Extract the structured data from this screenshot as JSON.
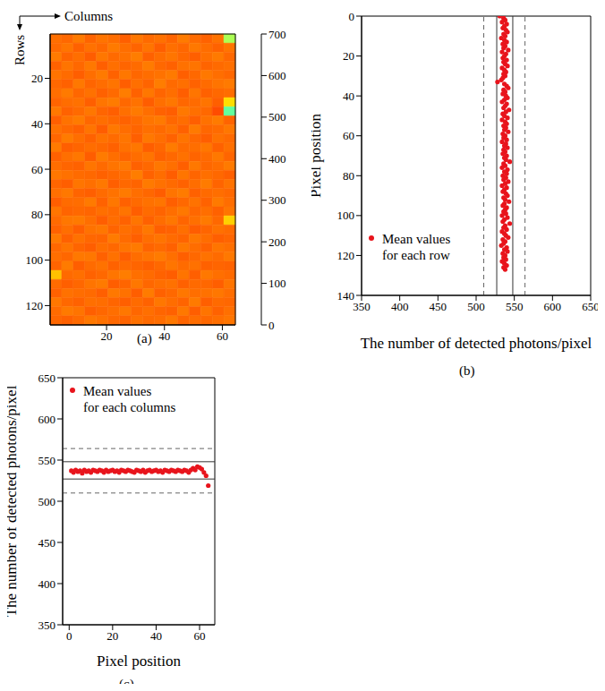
{
  "chart_data": [
    {
      "type": "heatmap",
      "caption": "(a)",
      "x_label": "Columns",
      "y_label": "Rows",
      "color": "jet",
      "xlim": [
        0.5,
        64.5
      ],
      "xticks": [
        20,
        40,
        60
      ],
      "ylim": [
        128.5,
        0.5
      ],
      "yticks": [
        20,
        40,
        60,
        80,
        100,
        120
      ],
      "colorbar": {
        "range": [
          0,
          700
        ],
        "ticks": [
          0,
          100,
          200,
          300,
          400,
          500,
          600,
          700
        ]
      },
      "cells": [
        [
          536,
          541,
          529,
          544,
          533,
          538,
          547,
          531,
          540,
          535,
          543,
          528,
          539,
          545,
          534,
          380
        ],
        [
          540,
          532,
          546,
          535,
          541,
          529,
          537,
          544,
          533,
          548,
          536,
          542,
          530,
          538,
          545,
          533
        ],
        [
          528,
          544,
          537,
          549,
          531,
          540,
          535,
          527,
          546,
          538,
          532,
          541,
          547,
          536,
          529,
          541
        ],
        [
          545,
          533,
          541,
          530,
          547,
          536,
          543,
          539,
          528,
          541,
          546,
          535,
          533,
          544,
          540,
          536
        ],
        [
          533,
          539,
          548,
          537,
          529,
          545,
          531,
          542,
          538,
          534,
          529,
          547,
          541,
          530,
          537,
          542
        ],
        [
          541,
          546,
          530,
          543,
          538,
          533,
          548,
          536,
          544,
          527,
          540,
          536,
          545,
          539,
          533,
          529
        ],
        [
          537,
          529,
          542,
          535,
          546,
          540,
          527,
          545,
          531,
          543,
          537,
          548,
          532,
          546,
          541,
          538
        ],
        [
          544,
          538,
          535,
          547,
          532,
          528,
          541,
          534,
          549,
          536,
          531,
          542,
          539,
          533,
          547,
          460
        ],
        [
          530,
          545,
          540,
          531,
          543,
          547,
          536,
          529,
          537,
          545,
          548,
          530,
          536,
          541,
          560,
          330
        ],
        [
          547,
          534,
          528,
          542,
          537,
          541,
          545,
          540,
          532,
          529,
          542,
          538,
          547,
          535,
          528,
          544
        ],
        [
          535,
          541,
          546,
          533,
          549,
          530,
          538,
          543,
          536,
          540,
          534,
          546,
          529,
          542,
          539,
          531
        ],
        [
          542,
          528,
          537,
          545,
          534,
          539,
          532,
          547,
          530,
          537,
          545,
          533,
          541,
          548,
          535,
          540
        ],
        [
          529,
          547,
          543,
          538,
          541,
          546,
          535,
          531,
          548,
          542,
          528,
          539,
          537,
          531,
          546,
          536
        ],
        [
          546,
          536,
          531,
          549,
          528,
          537,
          544,
          538,
          533,
          546,
          541,
          535,
          544,
          539,
          530,
          543
        ],
        [
          538,
          543,
          545,
          532,
          540,
          533,
          529,
          546,
          541,
          531,
          536,
          547,
          530,
          542,
          538,
          529
        ],
        [
          531,
          535,
          539,
          541,
          546,
          542,
          538,
          527,
          545,
          538,
          549,
          532,
          543,
          536,
          541,
          547
        ],
        [
          543,
          548,
          532,
          536,
          530,
          547,
          541,
          544,
          529,
          535,
          540,
          545,
          538,
          528,
          544,
          534
        ],
        [
          536,
          530,
          544,
          547,
          539,
          534,
          529,
          537,
          542,
          549,
          533,
          528,
          546,
          540,
          537,
          541
        ],
        [
          548,
          539,
          538,
          529,
          545,
          531,
          546,
          540,
          535,
          532,
          547,
          541,
          534,
          545,
          529,
          538
        ],
        [
          532,
          544,
          541,
          543,
          536,
          540,
          533,
          548,
          539,
          544,
          537,
          530,
          542,
          537,
          546,
          532
        ],
        [
          540,
          531,
          529,
          537,
          548,
          538,
          545,
          532,
          546,
          538,
          531,
          543,
          536,
          529,
          541,
          470
        ],
        [
          545,
          537,
          547,
          534,
          531,
          544,
          536,
          541,
          530,
          547,
          545,
          536,
          549,
          543,
          535,
          539
        ],
        [
          529,
          546,
          535,
          542,
          543,
          528,
          539,
          547,
          537,
          533,
          539,
          544,
          531,
          538,
          547,
          543
        ],
        [
          541,
          533,
          543,
          548,
          537,
          541,
          532,
          529,
          544,
          540,
          546,
          530,
          538,
          545,
          532,
          536
        ],
        [
          537,
          542,
          530,
          531,
          546,
          535,
          548,
          538,
          533,
          528,
          536,
          547,
          541,
          534,
          539,
          530
        ],
        [
          544,
          528,
          548,
          539,
          534,
          545,
          540,
          543,
          547,
          541,
          532,
          539,
          535,
          546,
          543,
          545
        ],
        [
          480,
          540,
          536,
          545,
          541,
          532,
          527,
          536,
          539,
          545,
          549,
          533,
          547,
          530,
          536,
          540
        ],
        [
          539,
          547,
          542,
          533,
          529,
          548,
          543,
          531,
          542,
          537,
          535,
          546,
          540,
          542,
          548,
          533
        ],
        [
          546,
          535,
          538,
          540,
          547,
          530,
          535,
          548,
          528,
          546,
          541,
          531,
          537,
          535,
          531,
          538
        ],
        [
          531,
          541,
          545,
          536,
          538,
          543,
          547,
          539,
          545,
          531,
          538,
          544,
          529,
          547,
          540,
          542
        ],
        [
          539,
          529,
          533,
          547,
          542,
          537,
          531,
          542,
          536,
          543,
          546,
          530,
          548,
          533,
          545,
          536
        ],
        [
          542,
          546,
          540,
          530,
          535,
          541,
          544,
          535,
          540,
          538,
          530,
          543,
          538,
          541,
          537,
          532
        ]
      ]
    },
    {
      "type": "scatter",
      "caption": "(b)",
      "x_label": "The number of detected photons/pixel",
      "y_label": "Pixel position",
      "xlim": [
        350,
        650
      ],
      "xticks": [
        350,
        400,
        450,
        500,
        550,
        600,
        650
      ],
      "ylim": [
        140,
        0
      ],
      "yticks": [
        0,
        20,
        40,
        60,
        80,
        100,
        120,
        140
      ],
      "legend": "lower left",
      "reference_lines": [
        {
          "axis": "x",
          "value": 510,
          "line_style": "dashed"
        },
        {
          "axis": "x",
          "value": 527,
          "line_style": "solid"
        },
        {
          "axis": "x",
          "value": 548,
          "line_style": "solid"
        },
        {
          "axis": "x",
          "value": 564,
          "line_style": "dashed"
        }
      ],
      "series": [
        {
          "name": "Mean values for each row",
          "color": "#e8141c",
          "marker": "circle",
          "x": [
            531,
            536,
            538,
            534,
            540,
            537,
            535,
            539,
            541,
            536,
            538,
            533,
            537,
            540,
            535,
            538,
            536,
            542,
            534,
            539,
            537,
            535,
            540,
            536,
            538,
            541,
            534,
            537,
            539,
            536,
            538,
            535,
            533,
            528,
            537,
            540,
            542,
            536,
            538,
            535,
            539,
            541,
            537,
            534,
            540,
            538,
            536,
            543,
            539,
            535,
            537,
            541,
            534,
            538,
            540,
            536,
            539,
            537,
            542,
            535,
            538,
            536,
            540,
            534,
            539,
            537,
            541,
            536,
            538,
            535,
            540,
            537,
            539,
            544,
            536,
            538,
            534,
            541,
            537,
            540,
            535,
            539,
            536,
            542,
            538,
            534,
            540,
            537,
            535,
            539,
            541,
            536,
            538,
            543,
            537,
            535,
            540,
            538,
            536,
            539,
            534,
            541,
            537,
            535,
            544,
            538,
            536,
            540,
            534,
            537,
            539,
            542,
            535,
            538,
            536,
            533,
            540,
            537,
            541,
            535,
            538,
            536,
            539,
            534,
            537,
            540,
            536,
            538
          ],
          "y": [
            0,
            1,
            2,
            3,
            4,
            5,
            6,
            7,
            8,
            9,
            10,
            11,
            12,
            13,
            14,
            15,
            16,
            17,
            18,
            19,
            20,
            21,
            22,
            23,
            24,
            25,
            26,
            27,
            28,
            29,
            30,
            31,
            32,
            33,
            34,
            35,
            36,
            37,
            38,
            39,
            40,
            41,
            42,
            43,
            44,
            45,
            46,
            47,
            48,
            49,
            50,
            51,
            52,
            53,
            54,
            55,
            56,
            57,
            58,
            59,
            60,
            61,
            62,
            63,
            64,
            65,
            66,
            67,
            68,
            69,
            70,
            71,
            72,
            73,
            74,
            75,
            76,
            77,
            78,
            79,
            80,
            81,
            82,
            83,
            84,
            85,
            86,
            87,
            88,
            89,
            90,
            91,
            92,
            93,
            94,
            95,
            96,
            97,
            98,
            99,
            100,
            101,
            102,
            103,
            104,
            105,
            106,
            107,
            108,
            109,
            110,
            111,
            112,
            113,
            114,
            115,
            116,
            117,
            118,
            119,
            120,
            121,
            122,
            123,
            124,
            125,
            126,
            127
          ]
        }
      ]
    },
    {
      "type": "scatter",
      "caption": "(c)",
      "x_label": "Pixel position",
      "y_label": "The number of detected photons/pixel",
      "xlim": [
        -3,
        67
      ],
      "xticks": [
        0,
        20,
        40,
        60
      ],
      "ylim": [
        350,
        650
      ],
      "yticks": [
        350,
        400,
        450,
        500,
        550,
        600,
        650
      ],
      "legend": "upper left",
      "reference_lines": [
        {
          "axis": "y",
          "value": 510,
          "line_style": "dashed"
        },
        {
          "axis": "y",
          "value": 527,
          "line_style": "solid"
        },
        {
          "axis": "y",
          "value": 548,
          "line_style": "solid"
        },
        {
          "axis": "y",
          "value": 564,
          "line_style": "dashed"
        }
      ],
      "series": [
        {
          "name": "Mean values for each columns",
          "color": "#e8141c",
          "marker": "circle",
          "x": [
            1,
            2,
            3,
            4,
            5,
            6,
            7,
            8,
            9,
            10,
            11,
            12,
            13,
            14,
            15,
            16,
            17,
            18,
            19,
            20,
            21,
            22,
            23,
            24,
            25,
            26,
            27,
            28,
            29,
            30,
            31,
            32,
            33,
            34,
            35,
            36,
            37,
            38,
            39,
            40,
            41,
            42,
            43,
            44,
            45,
            46,
            47,
            48,
            49,
            50,
            51,
            52,
            53,
            54,
            55,
            56,
            57,
            58,
            59,
            60,
            61,
            62,
            63,
            64
          ],
          "values": [
            537,
            535,
            538,
            536,
            537,
            534,
            538,
            536,
            537,
            535,
            538,
            537,
            536,
            538,
            537,
            535,
            538,
            536,
            537,
            538,
            536,
            537,
            535,
            538,
            537,
            536,
            538,
            537,
            536,
            535,
            538,
            537,
            536,
            538,
            535,
            537,
            538,
            536,
            537,
            538,
            536,
            537,
            535,
            538,
            537,
            536,
            538,
            537,
            536,
            538,
            537,
            536,
            538,
            537,
            535,
            538,
            540,
            538,
            542,
            541,
            539,
            535,
            531,
            519
          ]
        }
      ]
    }
  ]
}
